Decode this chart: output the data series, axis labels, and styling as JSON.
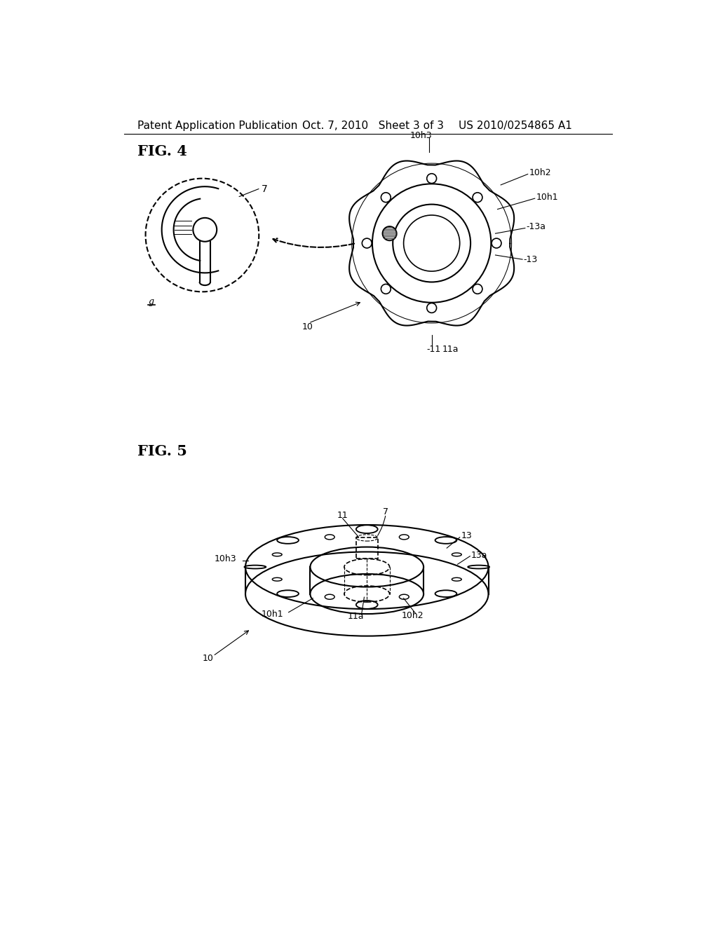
{
  "bg_color": "#ffffff",
  "line_color": "#000000",
  "header_left": "Patent Application Publication",
  "header_center": "Oct. 7, 2010   Sheet 3 of 3",
  "header_right": "US 2010/0254865 A1",
  "fig4_label": "FIG. 4",
  "fig5_label": "FIG. 5",
  "font_size_header": 11,
  "font_size_fig": 15,
  "font_size_annotation": 10
}
